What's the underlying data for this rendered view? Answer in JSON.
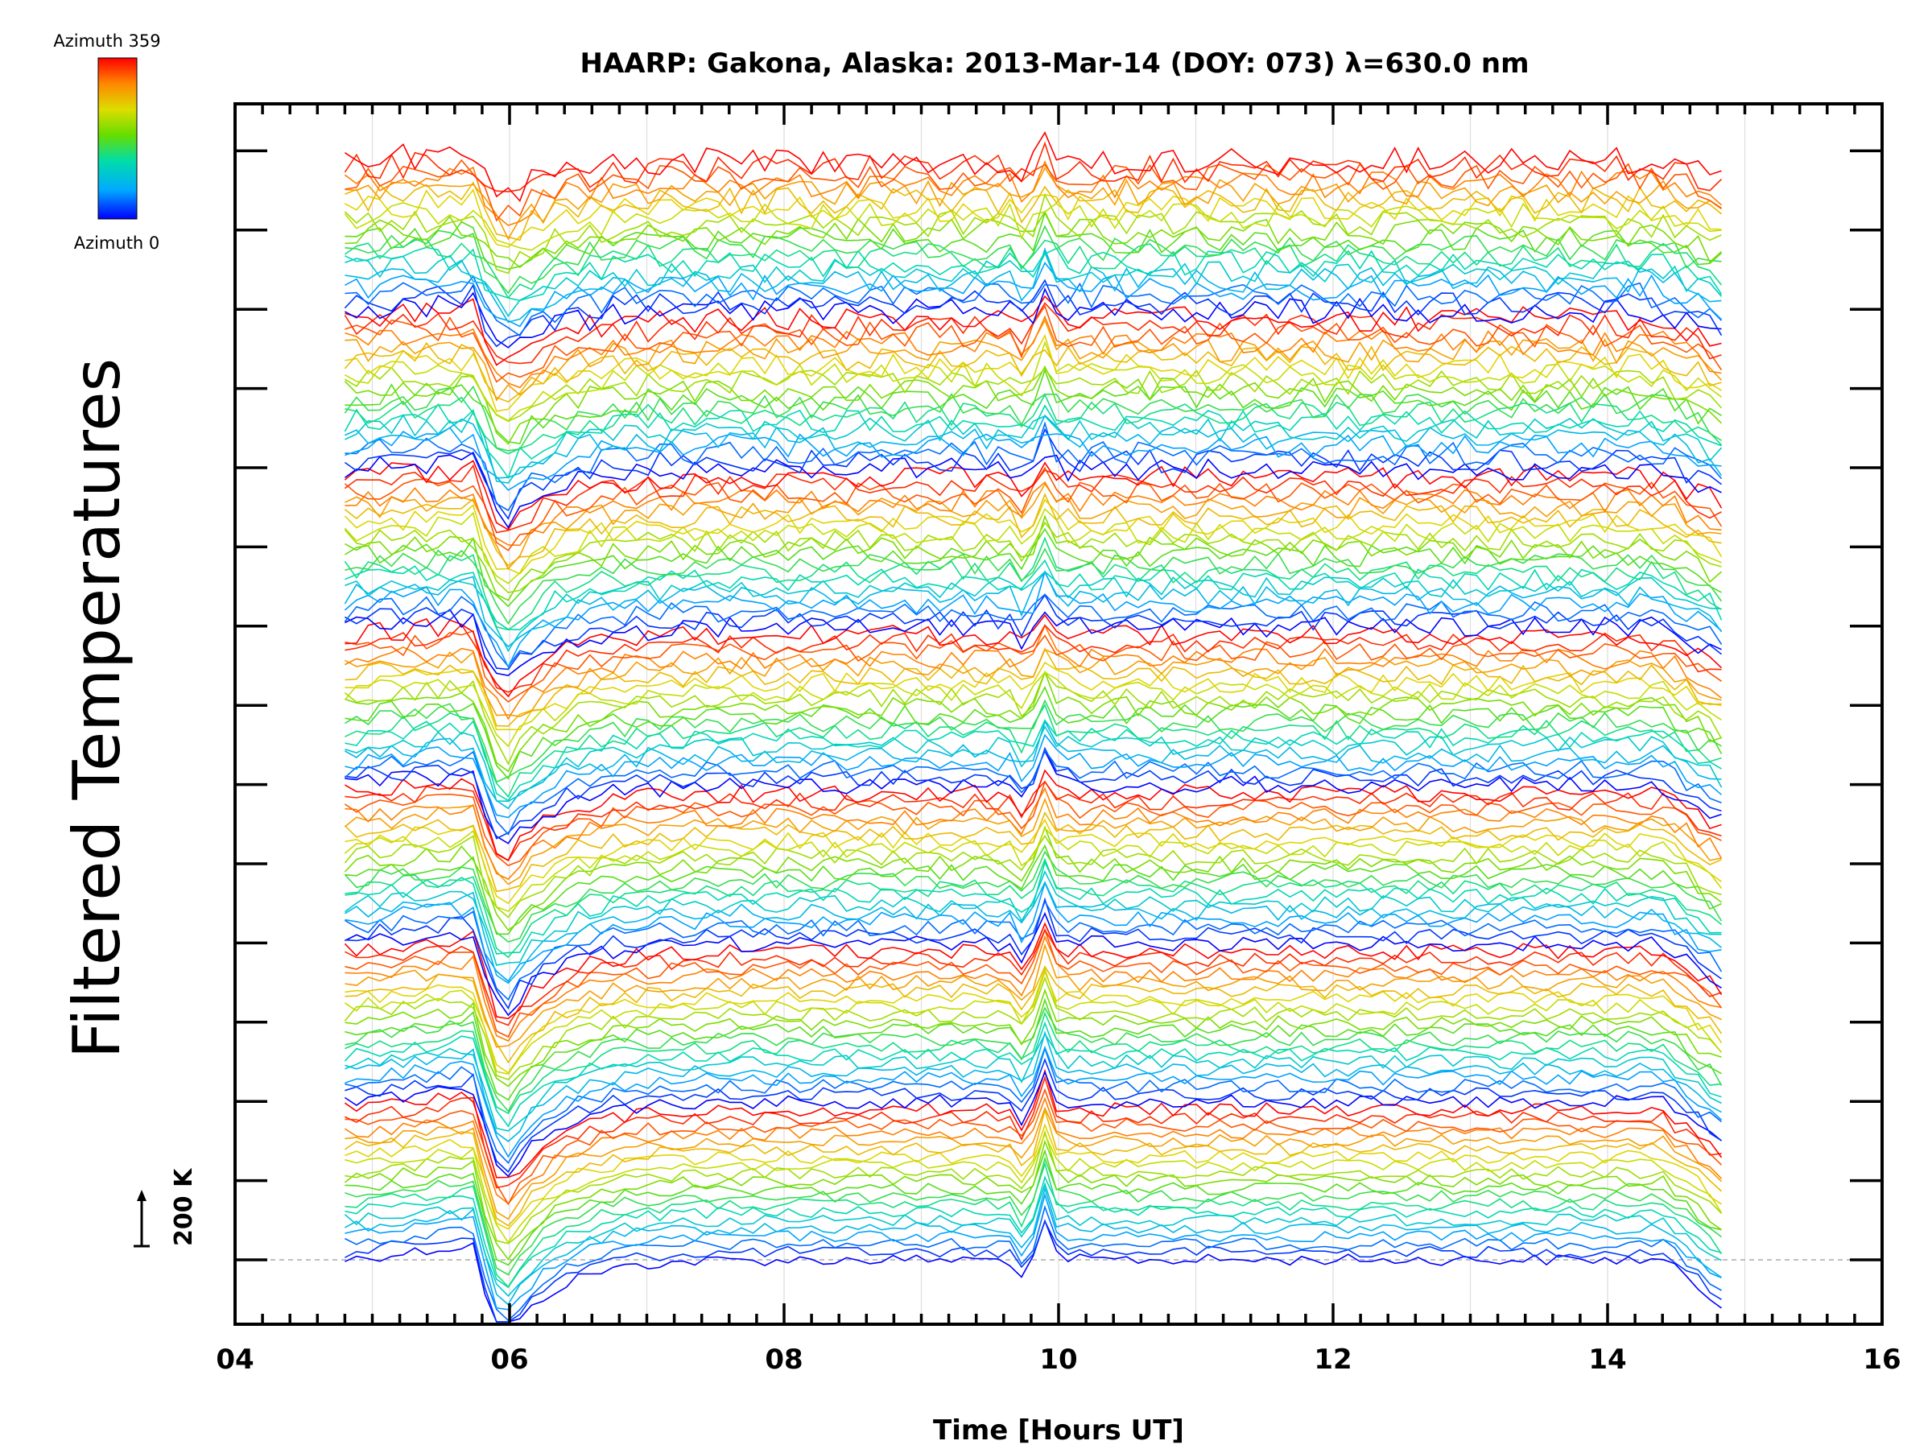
{
  "chart_data": {
    "type": "line",
    "title": "HAARP: Gakona,  Alaska: 2013-Mar-14 (DOY: 073) λ=630.0 nm",
    "xlabel": "Time [Hours UT]",
    "ylabel": "Filtered Temperatures",
    "xlim": [
      4,
      16
    ],
    "x_ticks": [
      "04",
      "06",
      "08",
      "10",
      "12",
      "14",
      "16"
    ],
    "grid": "vertical dotted at each hour",
    "scale_bar_label": "200 K",
    "colorbar": {
      "top_label": "Azimuth 359",
      "bottom_label": "Azimuth 0",
      "colors": [
        "#0000ff",
        "#00aaff",
        "#00ddaa",
        "#66dd00",
        "#dddd00",
        "#ff8800",
        "#ff0000"
      ]
    },
    "x_start": 4.8,
    "x_end": 14.9,
    "stack_groups": 7,
    "traces_per_group": 20,
    "series_description_values": {
      "dip_time": 5.8,
      "spike_time": 9.9,
      "trace_spacing_K": 28
    }
  }
}
